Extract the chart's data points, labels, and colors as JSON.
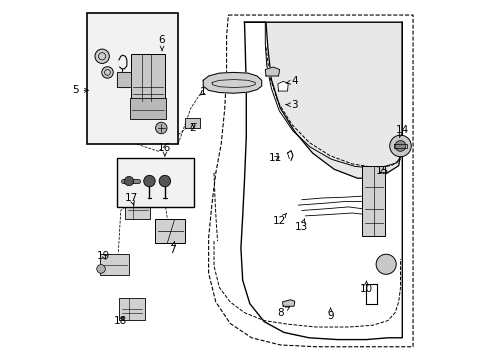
{
  "bg_color": "#ffffff",
  "lc": "#000000",
  "gray_fill": "#d8d8d8",
  "light_fill": "#efefef",
  "box_fill": "#f2f2f2",
  "figsize": [
    4.89,
    3.6
  ],
  "dpi": 100,
  "labels": {
    "1": [
      0.385,
      0.745,
      0.37,
      0.73
    ],
    "2": [
      0.355,
      0.645,
      0.355,
      0.665
    ],
    "3": [
      0.64,
      0.71,
      0.615,
      0.71
    ],
    "4": [
      0.64,
      0.775,
      0.615,
      0.77
    ],
    "5": [
      0.028,
      0.75,
      0.075,
      0.75
    ],
    "6": [
      0.27,
      0.89,
      0.27,
      0.86
    ],
    "7": [
      0.3,
      0.305,
      0.305,
      0.33
    ],
    "8": [
      0.6,
      0.13,
      0.628,
      0.148
    ],
    "9": [
      0.74,
      0.12,
      0.74,
      0.145
    ],
    "10": [
      0.84,
      0.195,
      0.84,
      0.22
    ],
    "11": [
      0.585,
      0.56,
      0.606,
      0.568
    ],
    "12": [
      0.597,
      0.385,
      0.618,
      0.408
    ],
    "13": [
      0.66,
      0.37,
      0.668,
      0.393
    ],
    "14": [
      0.94,
      0.64,
      0.932,
      0.618
    ],
    "15": [
      0.886,
      0.525,
      0.87,
      0.515
    ],
    "16": [
      0.278,
      0.59,
      0.278,
      0.565
    ],
    "17": [
      0.185,
      0.45,
      0.192,
      0.428
    ],
    "18": [
      0.155,
      0.108,
      0.168,
      0.128
    ],
    "19": [
      0.108,
      0.288,
      0.118,
      0.27
    ]
  }
}
